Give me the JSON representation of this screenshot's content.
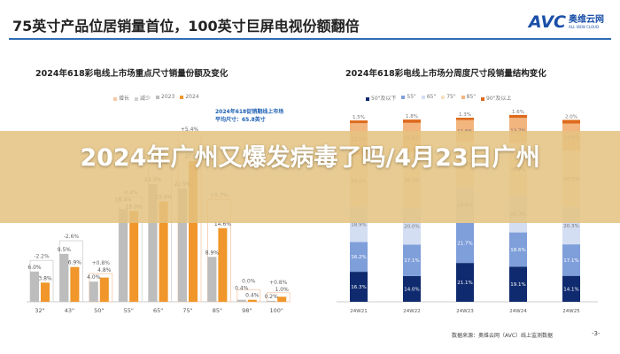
{
  "header": {
    "title": "75英寸产品位居销量首位，100英寸巨屏电视份额翻倍",
    "logo_text": "AVC",
    "logo_cn": "奥维云网",
    "logo_en": "ALL VIEW CLOUD"
  },
  "overlay_title": "2024年广州又爆发病毒了吗/4月23日广州",
  "footer": {
    "source": "数据来源：奥维云网（AVC）线上监测数据",
    "page": "-3-"
  },
  "chart_data": [
    {
      "type": "bar",
      "title": "2024年618彩电线上市场重点尺寸销量份额及变化",
      "legend": [
        "增长",
        "减少",
        "2023",
        "2024"
      ],
      "note": [
        "2024年618促销期线上市场",
        "平均尺寸：65.8英寸"
      ],
      "categories": [
        "32\"",
        "43\"",
        "50\"",
        "55\"",
        "65\"",
        "75\"",
        "85\"",
        "98\"",
        "100\""
      ],
      "series": [
        {
          "name": "2023",
          "values": [
            6.0,
            9.5,
            4.0,
            18.4,
            23.3,
            22.5,
            8.9,
            0.4,
            0.2
          ],
          "labels": [
            "6.0%",
            "9.5%",
            "4.0%",
            "18.4%",
            "23.3%",
            "22.5%",
            "8.9%",
            "0.4%",
            "0.2%"
          ]
        },
        {
          "name": "2024",
          "values": [
            3.8,
            6.9,
            4.8,
            18.0,
            19.9,
            27.9,
            14.6,
            0.4,
            1.0
          ],
          "labels": [
            "3.8%",
            "6.9%",
            "4.8%",
            "18.0%",
            "19.9%",
            "27.9%",
            "14.6%",
            "0.4%",
            "1.0%"
          ]
        }
      ],
      "changes": [
        "-2.2%",
        "-2.6%",
        "+0.8%",
        "-0.4%",
        "-3.4%",
        "+5.4%",
        "+5.7%",
        "0.0%",
        "+0.8%"
      ],
      "colors": {
        "2023": "#bdbdbd",
        "2024": "#f0962a",
        "increase": "#f5c9a8",
        "decrease": "#d0d0d0"
      }
    },
    {
      "type": "bar",
      "stacked": true,
      "title": "2024年618彩电线上市场分周度尺寸段销量结构变化",
      "categories": [
        "24W21",
        "24W22",
        "24W23",
        "24W24",
        "24W25"
      ],
      "series": [
        {
          "name": "50\"及以下",
          "color": "#0f2a6e",
          "values": [
            16.3,
            14.0,
            21.1,
            19.1,
            14.1
          ]
        },
        {
          "name": "55\"",
          "color": "#7f9fda",
          "values": [
            16.2,
            17.1,
            21.7,
            18.6,
            17.1
          ]
        },
        {
          "name": "65\"",
          "color": "#d3def3",
          "values": [
            18.9,
            20.0,
            19.5,
            20.3,
            20.3
          ]
        },
        {
          "name": "75\"",
          "color": "#f7e1c2",
          "values": [
            28.5,
            30.2,
            24.8,
            28.2,
            30.7
          ]
        },
        {
          "name": "85\"",
          "color": "#f3b57e",
          "values": [
            17.1,
            15.9,
            11.6,
            13.7,
            14.6
          ]
        },
        {
          "name": "90\"及以上",
          "color": "#de6a1c",
          "values": [
            1.5,
            1.8,
            1.3,
            1.6,
            2.0
          ]
        }
      ],
      "ylim": [
        0,
        100
      ]
    }
  ]
}
